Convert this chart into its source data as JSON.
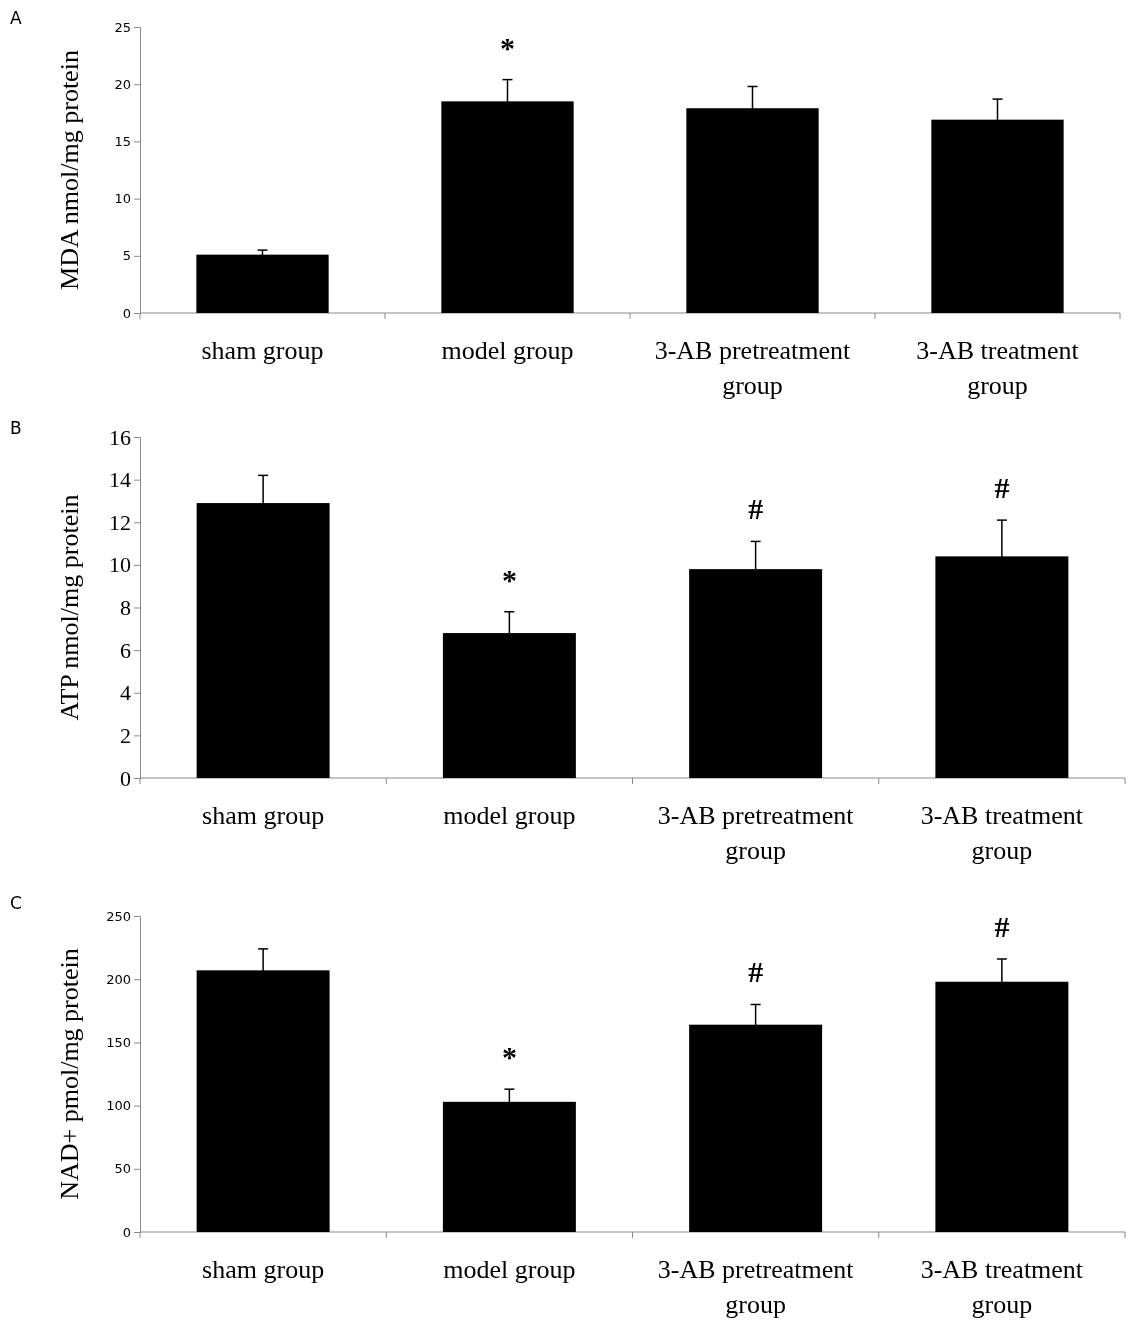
{
  "chart_data": [
    {
      "type": "bar",
      "title": "A",
      "ylabel": "MDA  nmol/mg  protein",
      "categories": [
        "sham group",
        "model group",
        "3-AB pretreatment group",
        "3-AB treatment group"
      ],
      "values": [
        5.1,
        18.5,
        17.9,
        16.9
      ],
      "errors": [
        0.4,
        1.9,
        1.9,
        1.8
      ],
      "color": "#000000",
      "ylim": [
        0,
        25
      ],
      "yticks": [
        0,
        5,
        10,
        15,
        20,
        25
      ],
      "grid": false,
      "value_labels": [
        null,
        "*",
        null,
        null
      ]
    },
    {
      "type": "bar",
      "title": "B",
      "ylabel": "ATP  nmol/mg  protein",
      "categories": [
        "sham group",
        "model group",
        "3-AB pretreatment group",
        "3-AB treatment group"
      ],
      "values": [
        12.9,
        6.8,
        9.8,
        10.4
      ],
      "errors": [
        1.3,
        1.0,
        1.3,
        1.7
      ],
      "color": "#000000",
      "ylim": [
        0,
        16
      ],
      "yticks": [
        0,
        2,
        4,
        6,
        8,
        10,
        12,
        14,
        16
      ],
      "grid": false,
      "value_labels": [
        null,
        "*",
        "#",
        "#"
      ]
    },
    {
      "type": "bar",
      "title": "C",
      "ylabel": "NAD+ pmol/mg protein",
      "categories": [
        "sham group",
        "model group",
        "3-AB pretreatment group",
        "3-AB treatment group"
      ],
      "values": [
        207,
        103,
        164,
        198
      ],
      "errors": [
        17,
        10,
        16,
        18
      ],
      "color": "#000000",
      "ylim": [
        0,
        250
      ],
      "yticks": [
        0,
        50,
        100,
        150,
        200,
        250
      ],
      "grid": false,
      "value_labels": [
        null,
        "*",
        "#",
        "#"
      ]
    }
  ]
}
